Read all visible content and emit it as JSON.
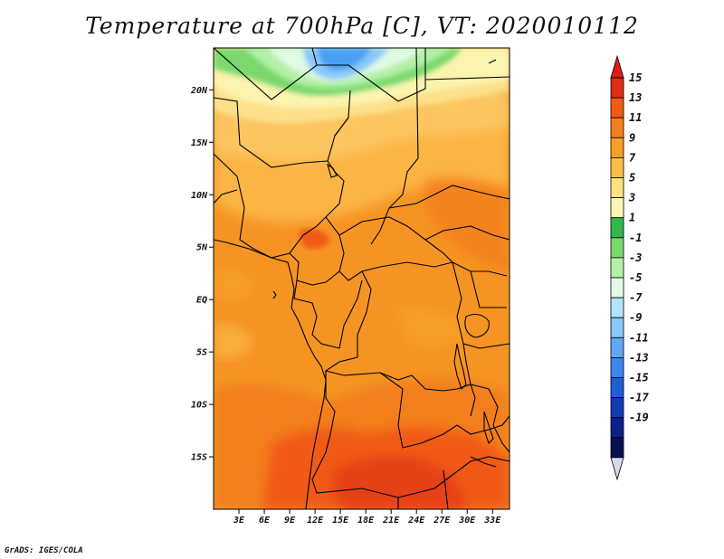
{
  "title": "Temperature at 700hPa [C], VT: 2020010112",
  "credit": "GrADS: IGES/COLA",
  "map": {
    "lat_range": [
      -20,
      24
    ],
    "lon_range": [
      0,
      35
    ],
    "lat_ticks": [
      {
        "value": 20,
        "label": "20N"
      },
      {
        "value": 15,
        "label": "15N"
      },
      {
        "value": 10,
        "label": "10N"
      },
      {
        "value": 5,
        "label": "5N"
      },
      {
        "value": 0,
        "label": "EQ"
      },
      {
        "value": -5,
        "label": "5S"
      },
      {
        "value": -10,
        "label": "10S"
      },
      {
        "value": -15,
        "label": "15S"
      }
    ],
    "lon_ticks": [
      {
        "value": 3,
        "label": "3E"
      },
      {
        "value": 6,
        "label": "6E"
      },
      {
        "value": 9,
        "label": "9E"
      },
      {
        "value": 12,
        "label": "12E"
      },
      {
        "value": 15,
        "label": "15E"
      },
      {
        "value": 18,
        "label": "18E"
      },
      {
        "value": 21,
        "label": "21E"
      },
      {
        "value": 24,
        "label": "24E"
      },
      {
        "value": 27,
        "label": "27E"
      },
      {
        "value": 30,
        "label": "30E"
      },
      {
        "value": 33,
        "label": "33E"
      }
    ]
  },
  "colorbar": {
    "labels": [
      "15",
      "13",
      "11",
      "9",
      "7",
      "5",
      "3",
      "1",
      "-1",
      "-3",
      "-5",
      "-7",
      "-9",
      "-11",
      "-13",
      "-15",
      "-17",
      "-19"
    ],
    "top_color": "#dc1e14",
    "bottom_color": "#d8d8f0",
    "colors": [
      "#e12d12",
      "#f05a14",
      "#f37f1a",
      "#f69e25",
      "#fbbe48",
      "#fde07f",
      "#fbf7b2",
      "#33b84a",
      "#7ad86c",
      "#b4f0a8",
      "#e1fae6",
      "#b2e4fa",
      "#8ac8fa",
      "#5fa8f5",
      "#3c87ee",
      "#1f5fd6",
      "#143bb4",
      "#0c1f8a",
      "#0c0e55"
    ]
  },
  "colors": {
    "hot": "#e8480f",
    "warm": "#f4a024",
    "mid": "#f59422",
    "light": "#fbc45a",
    "pale": "#fde08a",
    "cream": "#fbf4b0",
    "green": "#33b84a",
    "lightgreen": "#b4f0a8",
    "cyan": "#e1fae6",
    "blue": "#4aa0f2",
    "borders": "#000000"
  }
}
